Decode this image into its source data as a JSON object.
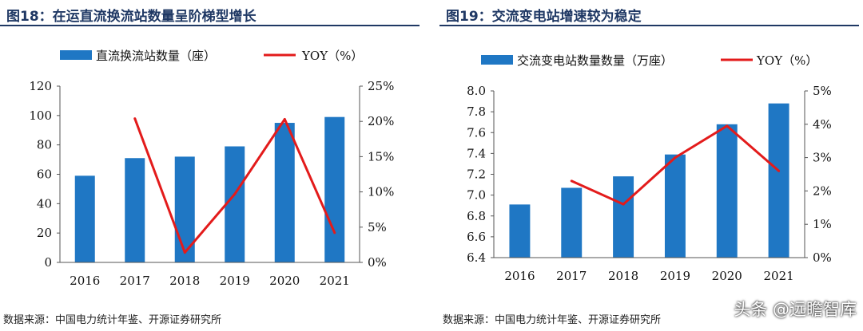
{
  "colors": {
    "bar": "#1f77c4",
    "line": "#e31b1b",
    "title": "#1f3864"
  },
  "watermark": "头条 @远瞻智库",
  "chart_data": [
    {
      "type": "bar",
      "title": "图18：在运直流换流站数量呈阶梯型增长",
      "source": "数据来源：中国电力统计年鉴、开源证券研究所",
      "categories": [
        "2016",
        "2017",
        "2018",
        "2019",
        "2020",
        "2021"
      ],
      "series": [
        {
          "name": "直流换流站数量（座）",
          "type": "bar",
          "axis": "left",
          "values": [
            59,
            71,
            72,
            79,
            95,
            99
          ]
        },
        {
          "name": "YOY（%）",
          "type": "line",
          "axis": "right",
          "values": [
            null,
            20.4,
            1.4,
            9.7,
            20.3,
            4.2
          ]
        }
      ],
      "ylim": [
        0,
        120
      ],
      "yticks": [
        "0",
        "20",
        "40",
        "60",
        "80",
        "100",
        "120"
      ],
      "y2lim": [
        0,
        25
      ],
      "y2ticks": [
        "0%",
        "5%",
        "10%",
        "15%",
        "20%",
        "25%"
      ],
      "legend": "top",
      "grid": false
    },
    {
      "type": "bar",
      "title": "图19：交流变电站增速较为稳定",
      "source": "数据来源：中国电力统计年鉴、开源证券研究所",
      "categories": [
        "2016",
        "2017",
        "2018",
        "2019",
        "2020",
        "2021"
      ],
      "series": [
        {
          "name": "交流变电站数量数量（万座）",
          "type": "bar",
          "axis": "left",
          "values": [
            6.91,
            7.07,
            7.18,
            7.39,
            7.68,
            7.88
          ]
        },
        {
          "name": "YOY（%）",
          "type": "line",
          "axis": "right",
          "values": [
            null,
            2.3,
            1.6,
            3.0,
            3.95,
            2.6
          ]
        }
      ],
      "ylim": [
        6.4,
        8.0
      ],
      "yticks": [
        "6.4",
        "6.6",
        "6.8",
        "7.0",
        "7.2",
        "7.4",
        "7.6",
        "7.8",
        "8.0"
      ],
      "y2lim": [
        0,
        5
      ],
      "y2ticks": [
        "0%",
        "1%",
        "2%",
        "3%",
        "4%",
        "5%"
      ],
      "legend": "top",
      "grid": false
    }
  ]
}
